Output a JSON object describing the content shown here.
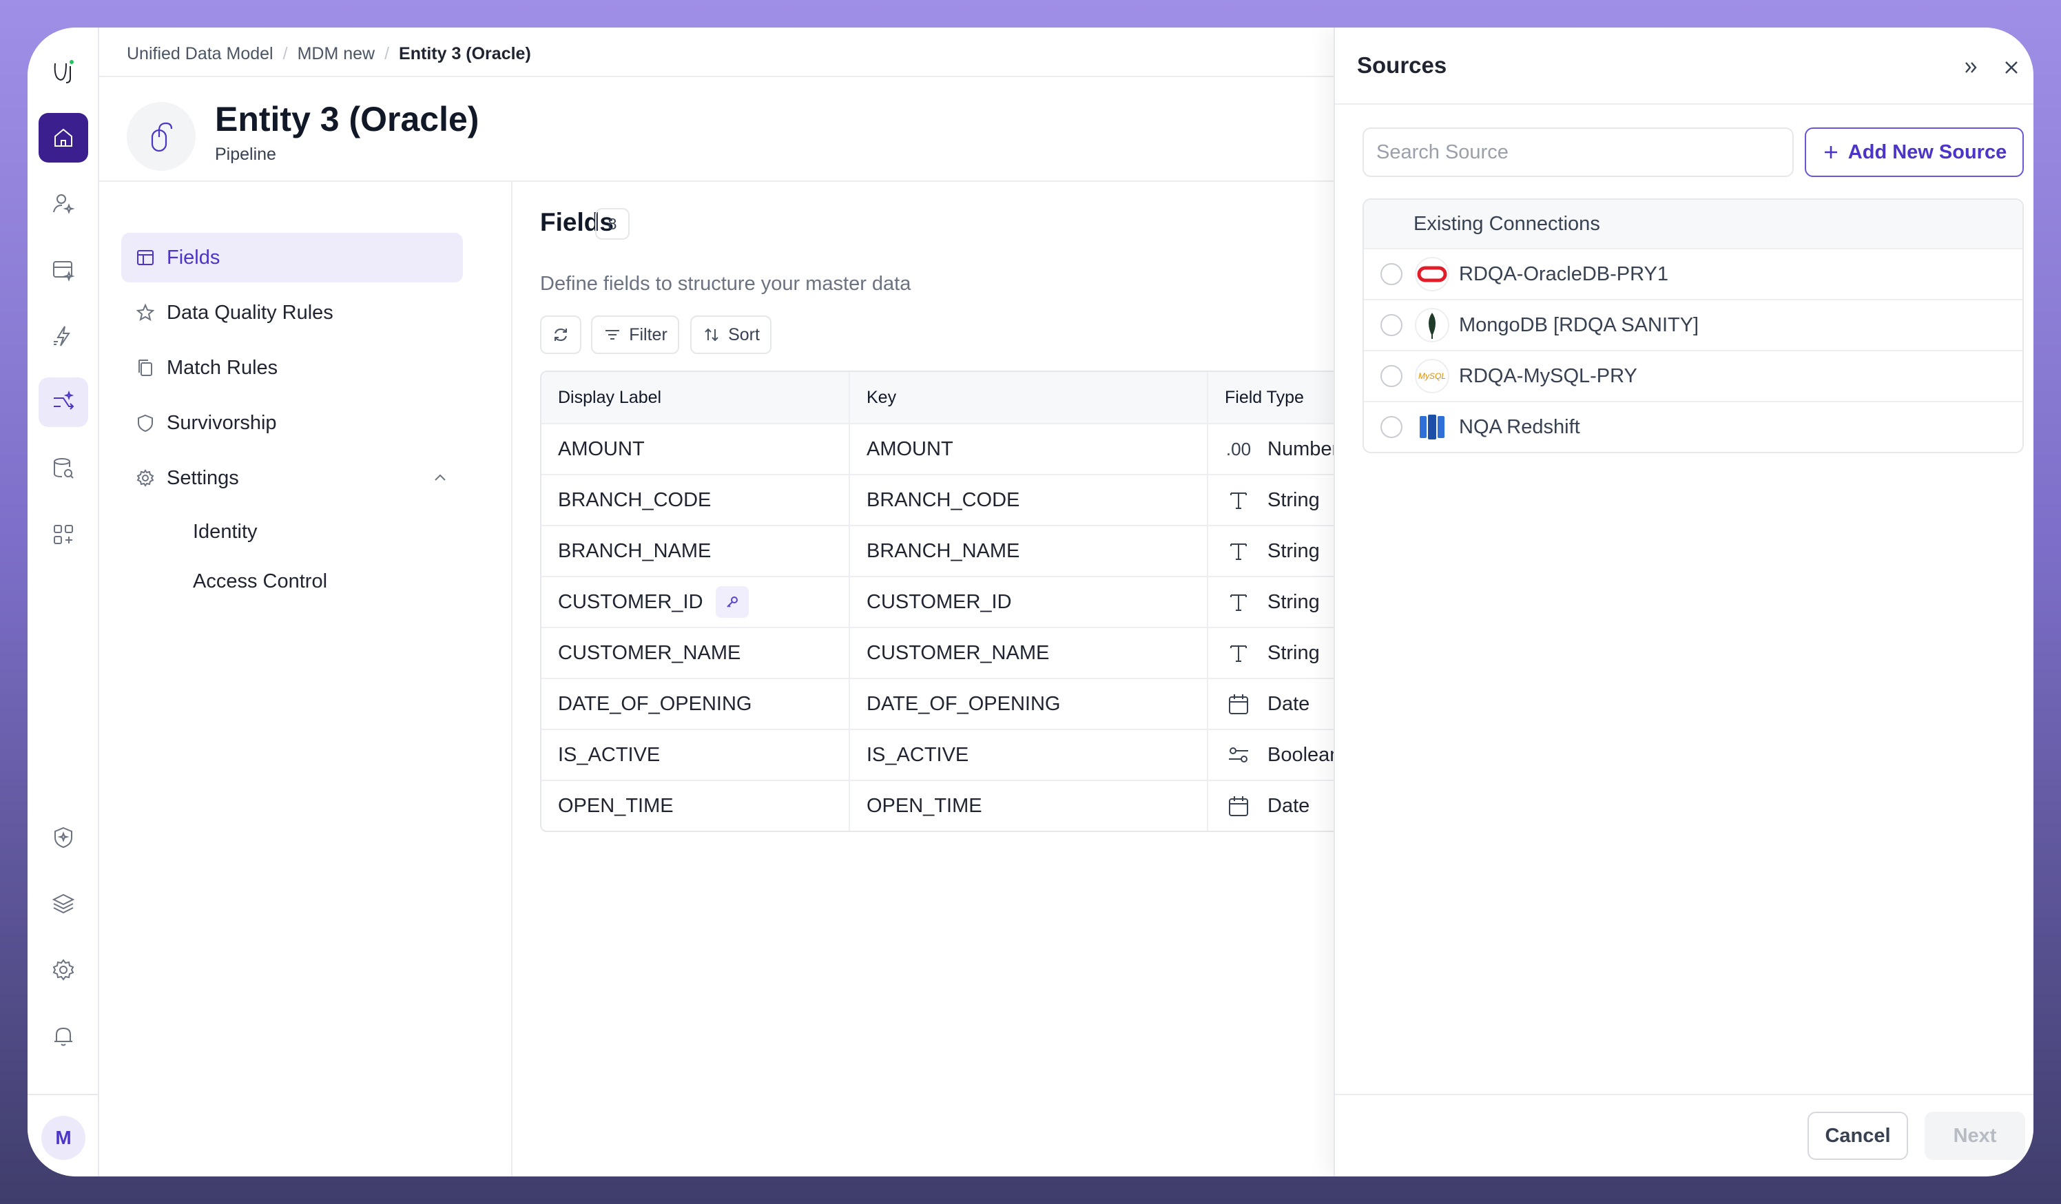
{
  "breadcrumb": [
    "Unified Data Model",
    "MDM new",
    "Entity 3 (Oracle)"
  ],
  "breadcrumb_separator": "/",
  "entity": {
    "title": "Entity 3 (Oracle)",
    "subtitle": "Pipeline"
  },
  "rail": {
    "icons": [
      "app-logo-icon",
      "home-icon",
      "user-star-icon",
      "data-sparkle-icon",
      "flash-sparkle-icon",
      "pipeline-sparkle-icon",
      "database-search-icon",
      "apps-add-icon",
      "shield-sparkle-icon",
      "layers-icon",
      "settings-icon",
      "bell-icon"
    ],
    "avatar": "M",
    "accent": "#3b1f8f"
  },
  "nav": {
    "items": [
      "Fields",
      "Data Quality Rules",
      "Match Rules",
      "Survivorship",
      "Settings"
    ],
    "settings_sub": [
      "Identity",
      "Access Control"
    ]
  },
  "fields": {
    "title": "Fields",
    "count": "8",
    "description": "Define fields to structure your master data",
    "filter_label": "Filter",
    "sort_label": "Sort"
  },
  "table": {
    "headers": [
      "Display Label",
      "Key",
      "Field Type"
    ],
    "rows": [
      {
        "label": "AMOUNT",
        "key": "AMOUNT",
        "type": "Number",
        "icon": ".00"
      },
      {
        "label": "BRANCH_CODE",
        "key": "BRANCH_CODE",
        "type": "String",
        "icon": "text-icon"
      },
      {
        "label": "BRANCH_NAME",
        "key": "BRANCH_NAME",
        "type": "String",
        "icon": "text-icon"
      },
      {
        "label": "CUSTOMER_ID",
        "key": "CUSTOMER_ID",
        "type": "String",
        "icon": "text-icon",
        "primary_key": true
      },
      {
        "label": "CUSTOMER_NAME",
        "key": "CUSTOMER_NAME",
        "type": "String",
        "icon": "text-icon"
      },
      {
        "label": "DATE_OF_OPENING",
        "key": "DATE_OF_OPENING",
        "type": "Date",
        "icon": "calendar-icon"
      },
      {
        "label": "IS_ACTIVE",
        "key": "IS_ACTIVE",
        "type": "Boolean",
        "icon": "toggle-icon"
      },
      {
        "label": "OPEN_TIME",
        "key": "OPEN_TIME",
        "type": "Date",
        "icon": "calendar-icon"
      }
    ]
  },
  "sources": {
    "title": "Sources",
    "search_placeholder": "Search Source",
    "add_label": "Add New Source",
    "section_label": "Existing Connections",
    "connections": [
      {
        "name": "RDQA-OracleDB-PRY1",
        "logo": "oracle-logo",
        "color": "#e11d2a"
      },
      {
        "name": "MongoDB [RDQA SANITY]",
        "logo": "mongodb-logo",
        "color": "#1f3b2a"
      },
      {
        "name": "RDQA-MySQL-PRY",
        "logo": "mysql-logo",
        "logo_text": "MySQL",
        "color": "#e48e00"
      },
      {
        "name": "NQA Redshift",
        "logo": "redshift-logo",
        "color": "#2f6fd8"
      }
    ],
    "cancel_label": "Cancel",
    "next_label": "Next"
  }
}
